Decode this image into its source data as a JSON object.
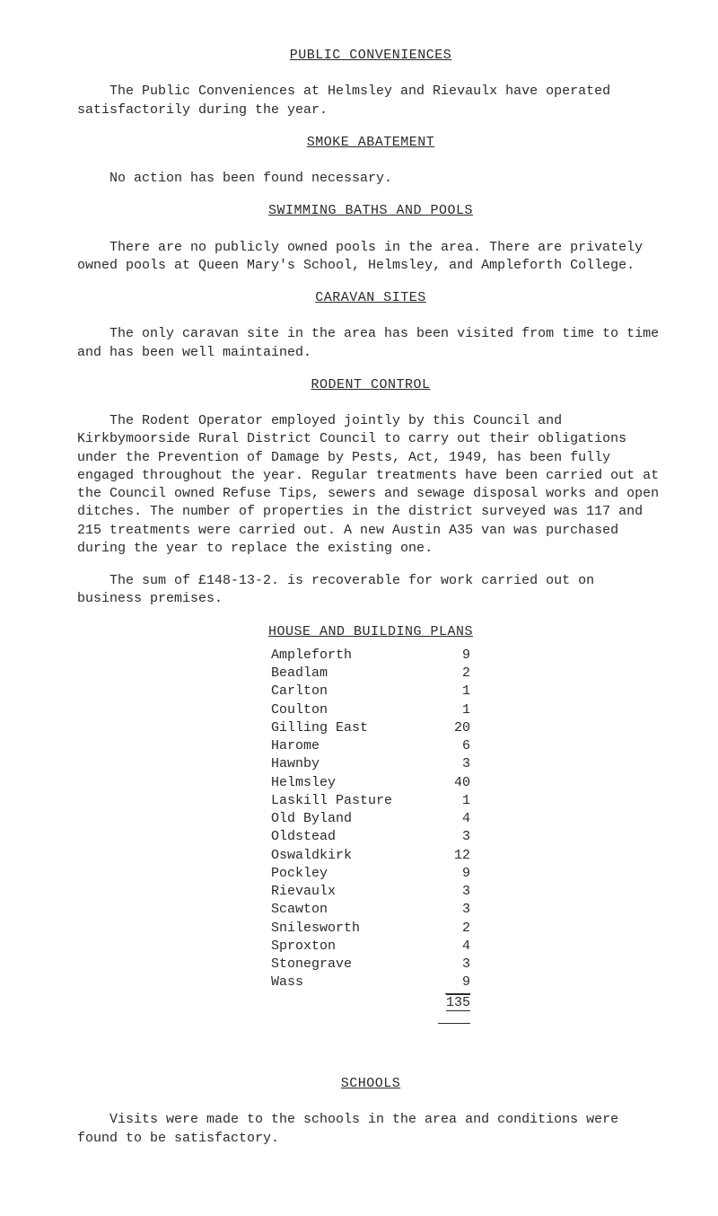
{
  "sections": {
    "public_conveniences": {
      "heading": "PUBLIC CONVENIENCES",
      "p1": "The Public Conveniences at Helmsley and Rievaulx have operated satisfactorily during the year."
    },
    "smoke": {
      "heading": "SMOKE ABATEMENT",
      "p1": "No action has been found necessary."
    },
    "swimming": {
      "heading": "SWIMMING BATHS AND POOLS",
      "p1": "There are no publicly owned pools in the area.  There are privately owned pools at Queen Mary's School, Helmsley, and Ampleforth College."
    },
    "caravan": {
      "heading": "CARAVAN SITES",
      "p1": "The only caravan site in the area has been visited from time to time and has been well maintained."
    },
    "rodent": {
      "heading": "RODENT CONTROL",
      "p1": "The Rodent Operator employed jointly by this Council and Kirkbymoorside Rural District Council to carry out their obligations under the Prevention of Damage by Pests, Act, 1949, has been fully engaged throughout the year. Regular treatments have been carried out at the Council owned Refuse Tips, sewers and sewage disposal works and open ditches.  The number of properties in the district surveyed was 117 and 215 treatments were carried out.  A new Austin A35 van was purchased during the year to replace the existing one.",
      "p2": "The sum of £148-13-2. is recoverable for work carried out on business premises."
    },
    "house_plans": {
      "heading": "HOUSE AND BUILDING PLANS",
      "rows": [
        {
          "name": "Ampleforth",
          "value": "9"
        },
        {
          "name": "Beadlam",
          "value": "2"
        },
        {
          "name": "Carlton",
          "value": "1"
        },
        {
          "name": "Coulton",
          "value": "1"
        },
        {
          "name": "Gilling East",
          "value": "20"
        },
        {
          "name": "Harome",
          "value": "6"
        },
        {
          "name": "Hawnby",
          "value": "3"
        },
        {
          "name": "Helmsley",
          "value": "40"
        },
        {
          "name": "Laskill Pasture",
          "value": "1"
        },
        {
          "name": "Old Byland",
          "value": "4"
        },
        {
          "name": "Oldstead",
          "value": "3"
        },
        {
          "name": "Oswaldkirk",
          "value": "12"
        },
        {
          "name": "Pockley",
          "value": "9"
        },
        {
          "name": "Rievaulx",
          "value": "3"
        },
        {
          "name": "Scawton",
          "value": "3"
        },
        {
          "name": "Snilesworth",
          "value": "2"
        },
        {
          "name": "Sproxton",
          "value": "4"
        },
        {
          "name": "Stonegrave",
          "value": "3"
        },
        {
          "name": "Wass",
          "value": "9"
        }
      ],
      "total": "135"
    },
    "schools": {
      "heading": "SCHOOLS",
      "p1": "Visits were made to the schools in the area and conditions were found to be satisfactory."
    }
  }
}
